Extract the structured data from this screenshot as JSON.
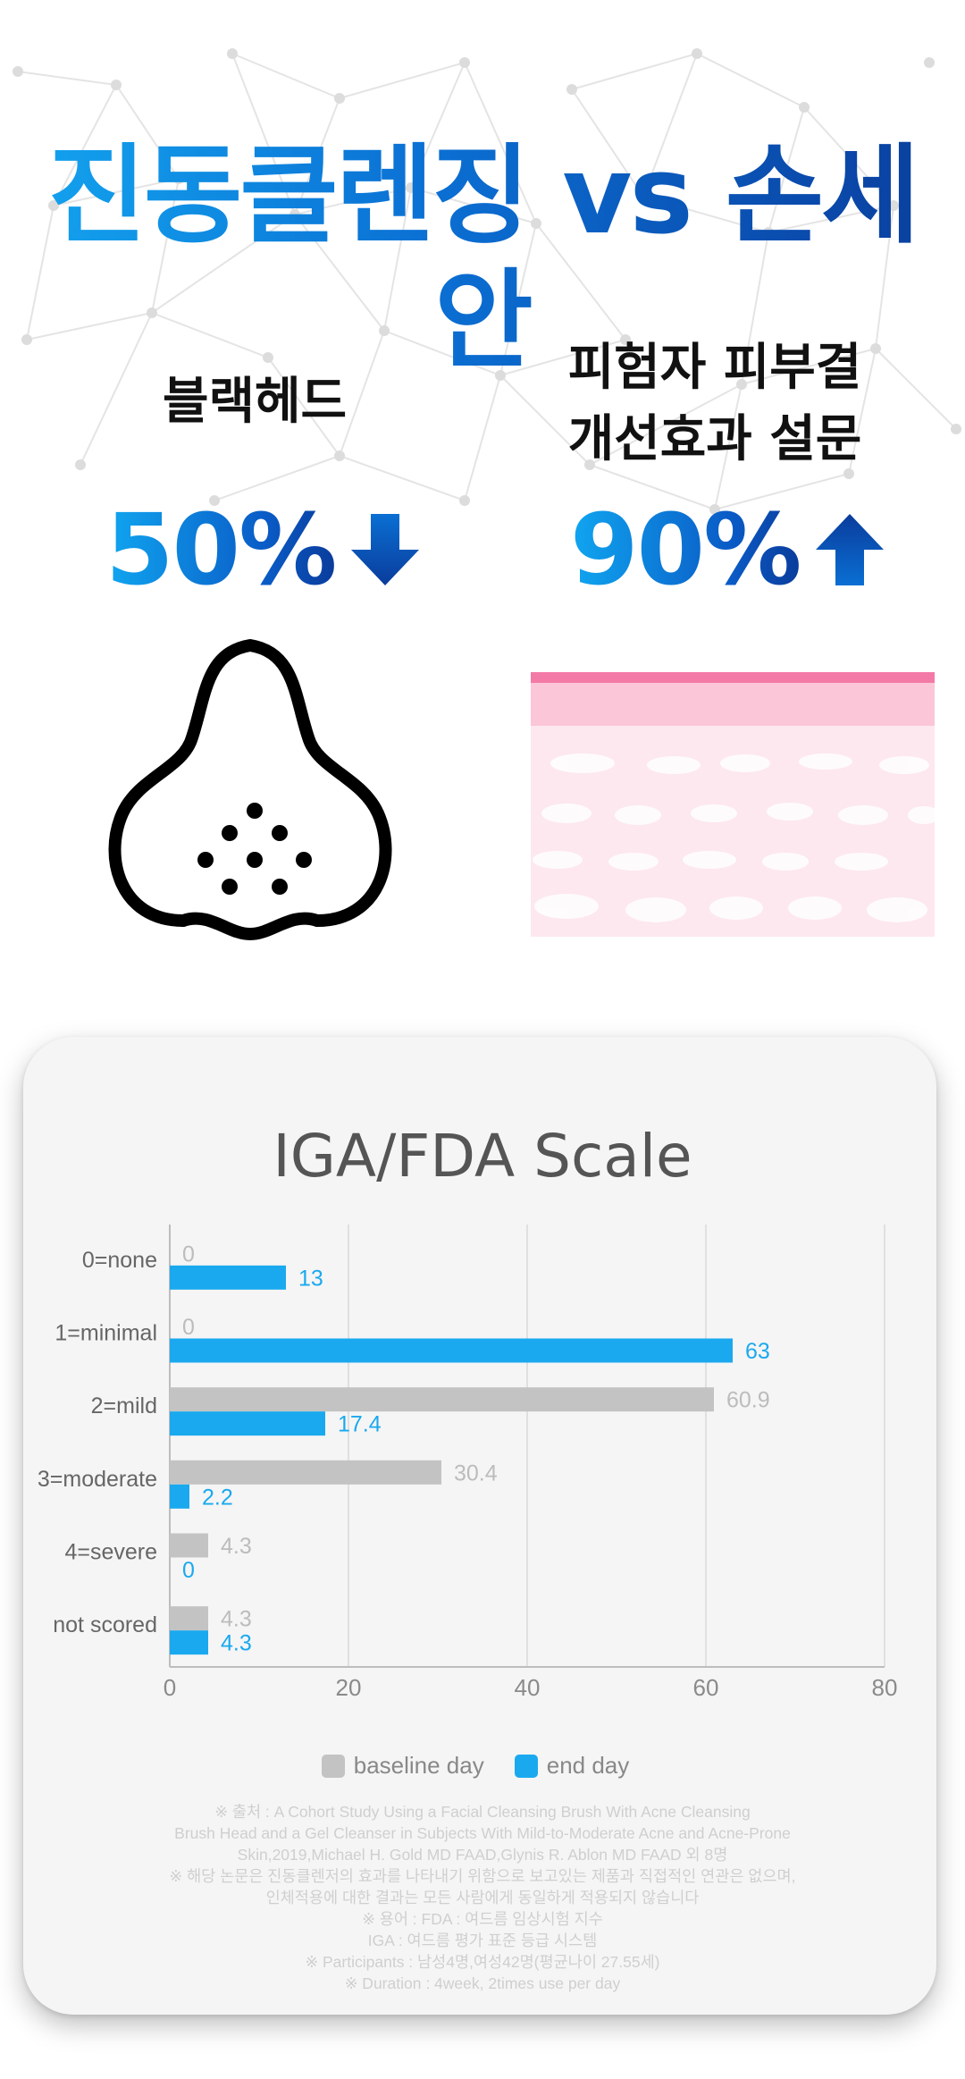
{
  "header": {
    "title": "진동클렌징 vs 손세안"
  },
  "stats": [
    {
      "label_lines": [
        "블랙헤드"
      ],
      "value": "50%",
      "direction": "down"
    },
    {
      "label_lines": [
        "피험자 피부결",
        "개선효과 설문"
      ],
      "value": "90%",
      "direction": "up"
    }
  ],
  "illustrations": {
    "left_icon": "nose-blackhead-icon",
    "right_icon": "skin-layer-icon"
  },
  "colors": {
    "accent_blue": "#1aa9ef",
    "dark_blue": "#0a3c9c",
    "baseline_gray": "#c3c3c3",
    "skin_pink": "#f37aa6"
  },
  "chart_data": {
    "type": "bar",
    "orientation": "horizontal",
    "title": "IGA/FDA Scale",
    "categories": [
      "0=none",
      "1=minimal",
      "2=mild",
      "3=moderate",
      "4=severe",
      "not scored"
    ],
    "series": [
      {
        "name": "baseline day",
        "color": "#c3c3c3",
        "values": [
          0,
          0,
          60.9,
          30.4,
          4.3,
          4.3
        ]
      },
      {
        "name": "end day",
        "color": "#1aa9ef",
        "values": [
          13,
          63,
          17.4,
          2.2,
          0,
          4.3
        ]
      }
    ],
    "xlim": [
      0,
      80
    ],
    "xticks": [
      0,
      20,
      40,
      60,
      80
    ],
    "grid": true,
    "legend_position": "bottom"
  },
  "footnotes": [
    "※ 출처 : A Cohort Study Using a Facial Cleansing Brush With Acne Cleansing",
    "Brush Head and a Gel Cleanser in Subjects With Mild-to-Moderate Acne and Acne-Prone",
    "Skin,2019,Michael H. Gold MD FAAD,Glynis R. Ablon MD FAAD 외 8명",
    "※ 해당 논문은 진동클렌저의 효과를 나타내기 위함으로 보고있는 제품과 직접적인 연관은 없으며,",
    "인체적용에 대한 결과는 모든 사람에게 동일하게 적용되지 않습니다",
    "※ 용어 : FDA : 여드름 임상시험 지수",
    "IGA : 여드름 평가 표준 등급 시스템",
    "※ Participants : 남성4명,여성42명(평균나이 27.55세)",
    "※ Duration : 4week, 2times use per day"
  ]
}
